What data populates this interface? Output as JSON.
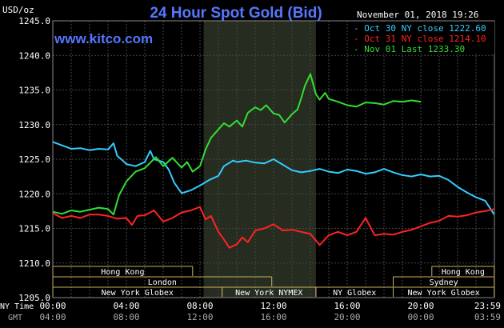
{
  "chart_data": {
    "type": "line",
    "title": "24 Hour Spot Gold (Bid)",
    "ylabel": "USD/oz",
    "site": "www.kitco.com",
    "timestamp": "November 01, 2018 19:26",
    "ylim": [
      1205,
      1245
    ],
    "xlim": [
      0,
      24
    ],
    "grid": true,
    "legend_position": "top-right",
    "y_ticks": [
      "1245.0",
      "1240.0",
      "1235.0",
      "1230.0",
      "1225.0",
      "1220.0",
      "1215.0",
      "1210.0",
      "1205.0"
    ],
    "x_ticks_ny": [
      "00:00",
      "04:00",
      "08:00",
      "12:00",
      "16:00",
      "20:00",
      "23:59"
    ],
    "x_ticks_gmt": [
      "04:00",
      "08:00",
      "12:00",
      "16:00",
      "20:00",
      "00:00",
      "03:59"
    ],
    "row_labels": {
      "ny": "NY Time",
      "gmt": "GMT"
    },
    "highlight_range": [
      8.2,
      14.3
    ],
    "series": [
      {
        "name": "Oct 30 NY close 1222.60",
        "color": "#33ccff",
        "x": [
          0,
          0.5,
          1,
          1.5,
          2,
          2.5,
          3,
          3.3,
          3.5,
          3.8,
          4,
          4.5,
          5,
          5.3,
          5.5,
          6,
          6.3,
          6.6,
          7,
          7.5,
          8,
          8.5,
          9,
          9.3,
          9.8,
          10,
          10.5,
          11,
          11.5,
          12,
          12.5,
          13,
          13.5,
          14,
          14.5,
          15,
          15.5,
          16,
          16.5,
          17,
          17.5,
          18,
          18.5,
          19,
          19.5,
          20,
          20.5,
          21,
          21.5,
          22,
          22.5,
          23,
          23.5,
          23.99
        ],
        "y": [
          1227.5,
          1227,
          1226.5,
          1226.6,
          1226.3,
          1226.5,
          1226.4,
          1227.3,
          1225.5,
          1224.8,
          1224.3,
          1224,
          1224.6,
          1226.2,
          1225,
          1224.6,
          1223.5,
          1221.6,
          1220.1,
          1220.5,
          1221.2,
          1222,
          1222.6,
          1224,
          1224.8,
          1224.6,
          1224.8,
          1224.5,
          1224.4,
          1225,
          1224.2,
          1223.4,
          1223.1,
          1223.3,
          1223.6,
          1223.2,
          1223,
          1223.5,
          1223.3,
          1222.9,
          1223.1,
          1223.6,
          1223.1,
          1222.7,
          1222.5,
          1222.8,
          1222.5,
          1222.6,
          1222,
          1221,
          1220.2,
          1219.5,
          1219,
          1217
        ]
      },
      {
        "name": "Oct 31 NY close 1214.10",
        "color": "#ff2222",
        "x": [
          0,
          0.5,
          1,
          1.5,
          2,
          2.5,
          3,
          3.5,
          4,
          4.3,
          4.6,
          5,
          5.5,
          6,
          6.5,
          7,
          7.5,
          8,
          8.3,
          8.6,
          9,
          9.3,
          9.6,
          10,
          10.3,
          10.6,
          11,
          11.5,
          12,
          12.5,
          13,
          13.5,
          14,
          14.5,
          15,
          15.5,
          16,
          16.5,
          17,
          17.5,
          18,
          18.5,
          19,
          19.5,
          20,
          20.5,
          21,
          21.5,
          22,
          22.5,
          23,
          23.5,
          23.99
        ],
        "y": [
          1217.2,
          1216.5,
          1216.8,
          1216.5,
          1217,
          1217,
          1216.8,
          1216.4,
          1216.5,
          1215.5,
          1216.8,
          1216.9,
          1217.6,
          1216,
          1216.5,
          1217.3,
          1217.6,
          1218.1,
          1216.3,
          1216.8,
          1214.5,
          1213.4,
          1212.2,
          1212.7,
          1213.7,
          1213,
          1214.7,
          1215,
          1215.6,
          1214.7,
          1214.8,
          1214.5,
          1214.2,
          1212.6,
          1214,
          1214.5,
          1214,
          1214.5,
          1216.5,
          1214,
          1214.2,
          1214.1,
          1214.5,
          1214.8,
          1215.3,
          1215.8,
          1216.1,
          1216.8,
          1216.7,
          1216.9,
          1217.3,
          1217.5,
          1217.8
        ]
      },
      {
        "name": "Nov 01 Last 1233.30",
        "color": "#33dd33",
        "x": [
          0,
          0.5,
          1,
          1.5,
          2,
          2.5,
          3,
          3.3,
          3.6,
          4,
          4.5,
          5,
          5.3,
          5.6,
          6,
          6.5,
          7,
          7.3,
          7.6,
          8,
          8.3,
          8.6,
          9,
          9.3,
          9.6,
          10,
          10.3,
          10.6,
          11,
          11.3,
          11.6,
          12,
          12.3,
          12.6,
          13,
          13.3,
          13.5,
          13.7,
          14,
          14.3,
          14.5,
          14.8,
          15,
          15.5,
          16,
          16.5,
          17,
          17.5,
          18,
          18.5,
          19,
          19.5,
          20
        ],
        "y": [
          1217.4,
          1217.1,
          1217.6,
          1217.4,
          1217.7,
          1218,
          1217.8,
          1217,
          1219.8,
          1221.8,
          1223.2,
          1223.7,
          1224.5,
          1225.3,
          1224,
          1225.2,
          1223.8,
          1224.6,
          1223.2,
          1224,
          1226.4,
          1228.1,
          1229.3,
          1230.2,
          1229.7,
          1230.6,
          1229.7,
          1231.7,
          1232.5,
          1232.1,
          1232.8,
          1231.6,
          1231.4,
          1230.3,
          1231.5,
          1232.2,
          1233.8,
          1235.6,
          1237.3,
          1234.4,
          1233.6,
          1234.6,
          1233.7,
          1233.3,
          1232.8,
          1232.6,
          1233.2,
          1233.1,
          1232.9,
          1233.4,
          1233.3,
          1233.5,
          1233.3
        ]
      }
    ]
  },
  "sessions": [
    {
      "label": "Hong Kong",
      "start": 0,
      "end": 7.6,
      "row": 0
    },
    {
      "label": "London",
      "start": 0,
      "end": 11.9,
      "row": 1
    },
    {
      "label": "New York Globex",
      "start": 0,
      "end": 9.2,
      "row": 2
    },
    {
      "label": "New York NYMEX",
      "start": 9.2,
      "end": 14.3,
      "row": 2
    },
    {
      "label": "NY Globex",
      "start": 14.3,
      "end": 18.5,
      "row": 2
    },
    {
      "label": "Hong Kong",
      "start": 20.6,
      "end": 23.99,
      "row": 0
    },
    {
      "label": "Sydney",
      "start": 18.5,
      "end": 23.99,
      "row": 1
    },
    {
      "label": "New York Globex",
      "start": 18.5,
      "end": 23.99,
      "row": 2
    }
  ]
}
